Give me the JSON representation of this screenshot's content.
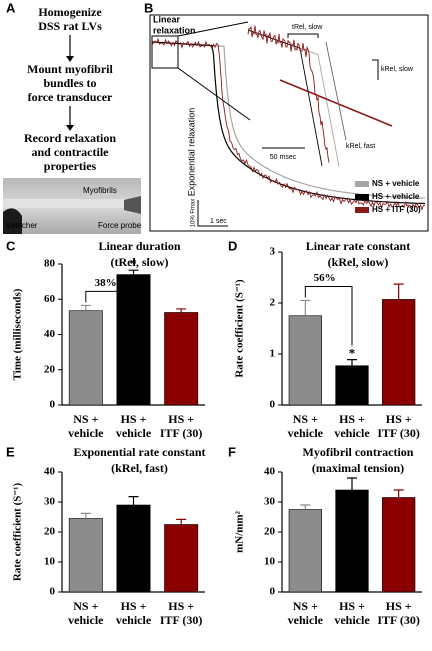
{
  "panel_a": {
    "label": "A",
    "steps": [
      [
        "Homogenize",
        "DSS rat LVs"
      ],
      [
        "Mount myofibril",
        "bundles to",
        "force transducer"
      ],
      [
        "Record relaxation",
        "and contractile",
        "properties"
      ]
    ],
    "image_labels": {
      "myofibrils": "Myofibrils",
      "stretcher": "Stretcher",
      "force_probe": "Force probe"
    }
  },
  "panel_b": {
    "label": "B",
    "box_label": [
      "Linear",
      "relaxation"
    ],
    "y_label": "Exponential relaxation",
    "t_label": "tRel, slow",
    "k_slow_label": "kRel, slow",
    "k_fast_label": "kRel, fast",
    "inset_scale": "50 msec",
    "force_scale": "10% Fmax",
    "time_scale": "1 sec",
    "legend": [
      {
        "name": "NS + vehicle",
        "color": "#a6a6a6"
      },
      {
        "name": "HS + vehicle",
        "color": "#000000"
      },
      {
        "name": "HS + ITF (30)",
        "color": "#8b1a1a"
      }
    ]
  },
  "chart_data": [
    {
      "type": "bar",
      "panel": "C",
      "title": "Linear duration",
      "subtitle": "(tRel, slow)",
      "y_label": "Time (milliseconds)",
      "categories": [
        [
          "NS +",
          "vehicle"
        ],
        [
          "HS +",
          "vehicle"
        ],
        [
          "HS +",
          "ITF (30)"
        ]
      ],
      "values": [
        53.5,
        74,
        52.5
      ],
      "errors": [
        3,
        2.5,
        2
      ],
      "colors": [
        "#8c8c8c",
        "#000000",
        "#8b0000"
      ],
      "ylim": [
        0,
        80
      ],
      "yticks": [
        0,
        20,
        40,
        60,
        80
      ],
      "bracket_label": "38%",
      "significance": "*"
    },
    {
      "type": "bar",
      "panel": "D",
      "title": "Linear rate constant",
      "subtitle": "(kRel, slow)",
      "y_label": "Rate coefficient (S⁻¹)",
      "categories": [
        [
          "NS +",
          "vehicle"
        ],
        [
          "HS +",
          "vehicle"
        ],
        [
          "HS +",
          "ITF (30)"
        ]
      ],
      "values": [
        1.75,
        0.77,
        2.07
      ],
      "errors": [
        0.3,
        0.12,
        0.3
      ],
      "colors": [
        "#8c8c8c",
        "#000000",
        "#8b0000"
      ],
      "ylim": [
        0,
        3
      ],
      "yticks": [
        0,
        1,
        2,
        3
      ],
      "bracket_label": "56%",
      "significance": "*"
    },
    {
      "type": "bar",
      "panel": "E",
      "title": "Exponential rate constant",
      "subtitle": "(kRel, fast)",
      "y_label": "Rate coefficient (S⁻¹)",
      "categories": [
        [
          "NS +",
          "vehicle"
        ],
        [
          "HS +",
          "vehicle"
        ],
        [
          "HS +",
          "ITF (30)"
        ]
      ],
      "values": [
        24.5,
        29,
        22.5
      ],
      "errors": [
        1.7,
        2.8,
        1.7
      ],
      "colors": [
        "#8c8c8c",
        "#000000",
        "#8b0000"
      ],
      "ylim": [
        0,
        40
      ],
      "yticks": [
        0,
        10,
        20,
        30,
        40
      ]
    },
    {
      "type": "bar",
      "panel": "F",
      "title": "Myofibril contraction",
      "subtitle": "(maximal tension)",
      "y_label": "mN/mm²",
      "categories": [
        [
          "NS +",
          "vehicle"
        ],
        [
          "HS +",
          "vehicle"
        ],
        [
          "HS +",
          "ITF (30)"
        ]
      ],
      "values": [
        27.5,
        34,
        31.5
      ],
      "errors": [
        1.5,
        4,
        2.5
      ],
      "colors": [
        "#8c8c8c",
        "#000000",
        "#8b0000"
      ],
      "ylim": [
        0,
        40
      ],
      "yticks": [
        0,
        10,
        20,
        30,
        40
      ]
    }
  ]
}
